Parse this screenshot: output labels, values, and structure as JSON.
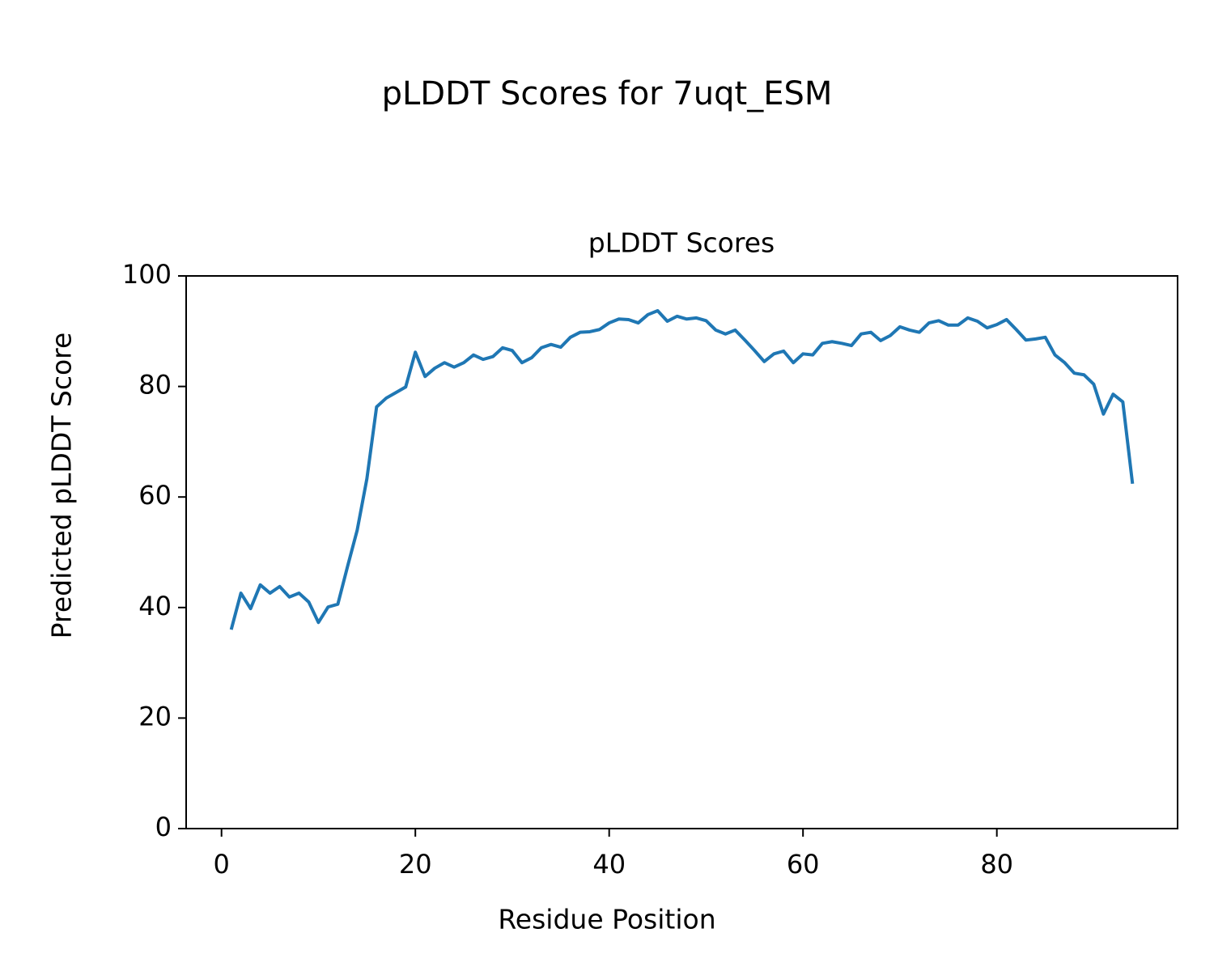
{
  "chart_data": {
    "type": "line",
    "title": "pLDDT Scores for 7uqt_ESM",
    "subtitle": "pLDDT Scores",
    "x_label": "Residue Position",
    "y_label": "Predicted pLDDT Score",
    "color": "#1f77b4",
    "x": [
      1,
      2,
      3,
      4,
      5,
      6,
      7,
      8,
      9,
      10,
      11,
      12,
      13,
      14,
      15,
      16,
      17,
      18,
      19,
      20,
      21,
      22,
      23,
      24,
      25,
      26,
      27,
      28,
      29,
      30,
      31,
      32,
      33,
      34,
      35,
      36,
      37,
      38,
      39,
      40,
      41,
      42,
      43,
      44,
      45,
      46,
      47,
      48,
      49,
      50,
      51,
      52,
      53,
      54,
      55,
      56,
      57,
      58,
      59,
      60,
      61,
      62,
      63,
      64,
      65,
      66,
      67,
      68,
      69,
      70,
      71,
      72,
      73,
      74,
      75,
      76,
      77,
      78,
      79,
      80,
      81,
      82,
      83,
      84,
      85,
      86,
      87,
      88,
      89,
      90,
      91,
      92,
      93,
      94
    ],
    "values": [
      36.0,
      42.6,
      39.8,
      44.1,
      42.6,
      43.8,
      41.9,
      42.6,
      41.0,
      37.3,
      40.1,
      40.6,
      47.4,
      54.0,
      63.3,
      76.3,
      77.9,
      78.9,
      79.9,
      86.2,
      81.8,
      83.3,
      84.3,
      83.5,
      84.3,
      85.7,
      84.9,
      85.4,
      87.0,
      86.5,
      84.3,
      85.2,
      87.0,
      87.6,
      87.1,
      88.9,
      89.8,
      89.9,
      90.3,
      91.5,
      92.2,
      92.1,
      91.5,
      93.0,
      93.7,
      91.8,
      92.7,
      92.2,
      92.4,
      91.9,
      90.2,
      89.5,
      90.2,
      88.4,
      86.5,
      84.5,
      85.9,
      86.4,
      84.3,
      85.9,
      85.7,
      87.8,
      88.1,
      87.8,
      87.4,
      89.5,
      89.8,
      88.3,
      89.2,
      90.8,
      90.2,
      89.8,
      91.5,
      91.9,
      91.1,
      91.1,
      92.4,
      91.8,
      90.6,
      91.2,
      92.1,
      90.3,
      88.4,
      88.6,
      88.9,
      85.7,
      84.3,
      82.4,
      82.1,
      80.4,
      75.0,
      78.6,
      77.2,
      62.4
    ],
    "xlim": [
      -3.65,
      98.65
    ],
    "xticks": [
      0,
      20,
      40,
      60,
      80
    ],
    "ylim": [
      0,
      100
    ],
    "yticks": [
      0,
      20,
      40,
      60,
      80,
      100
    ],
    "grid": false
  }
}
